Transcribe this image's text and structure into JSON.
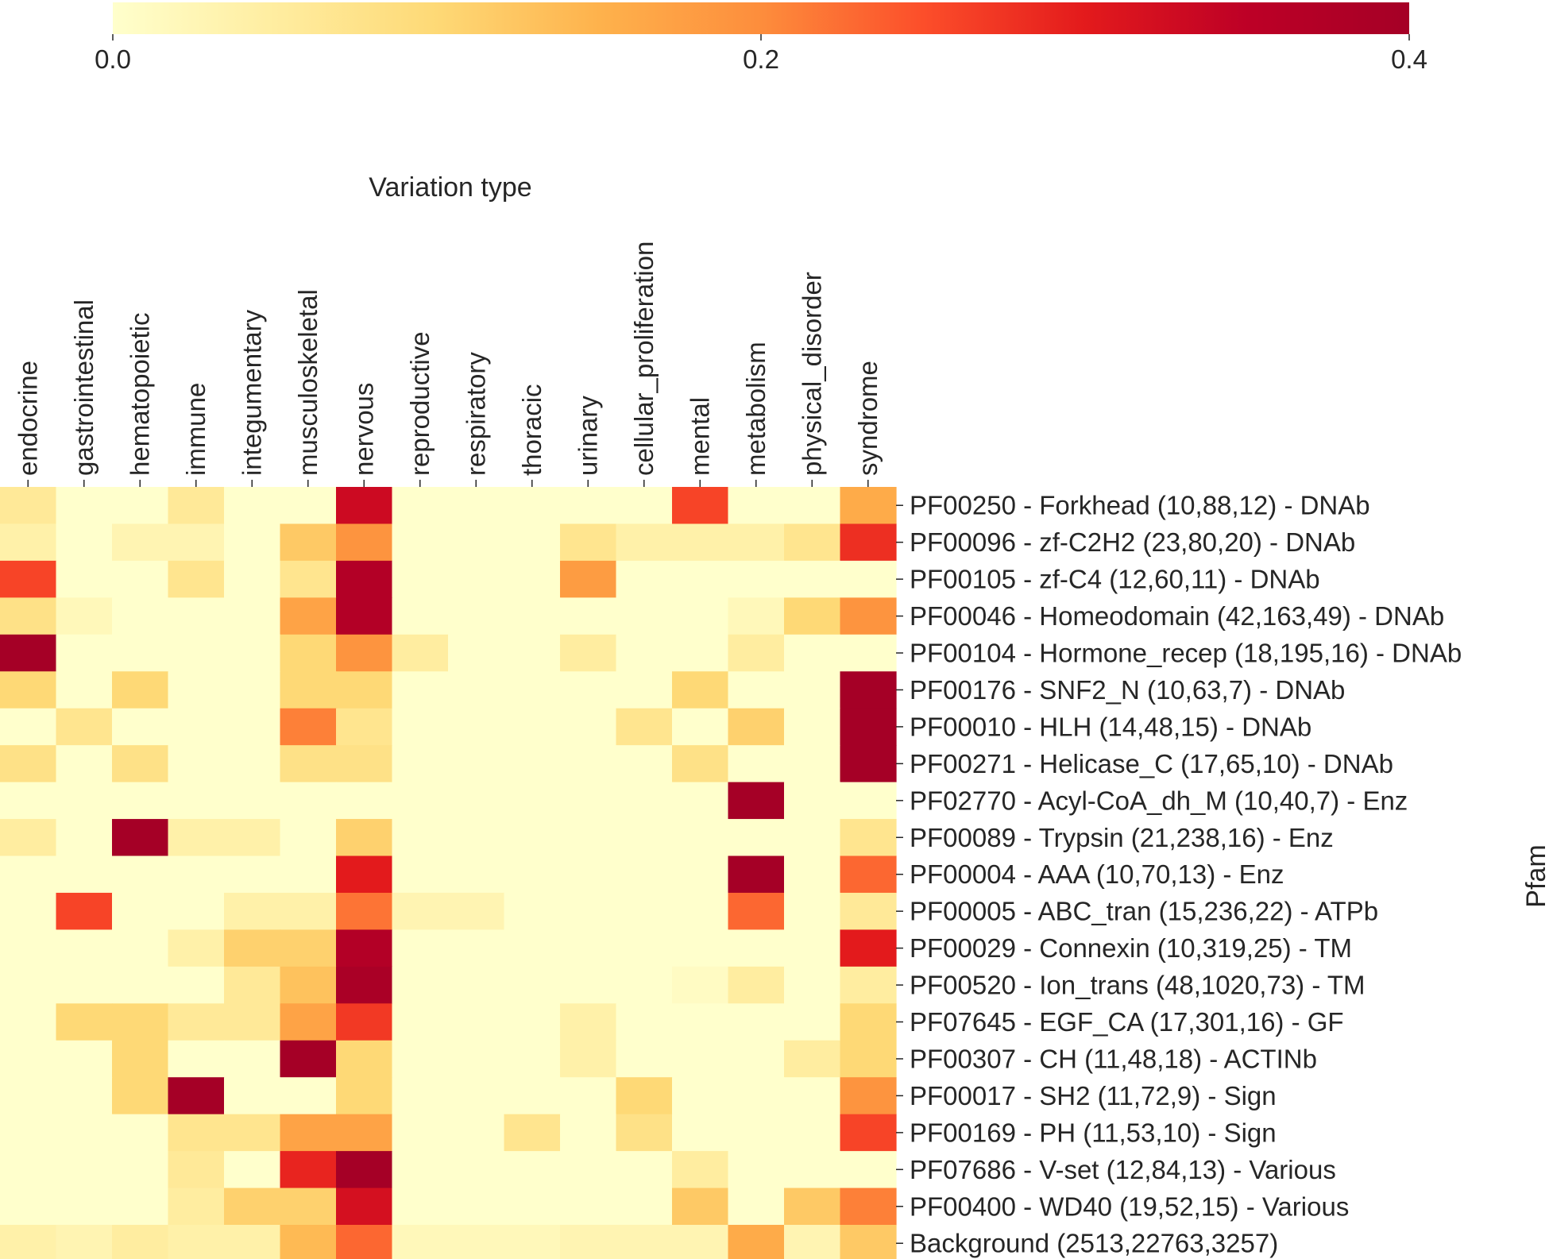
{
  "chart_data": {
    "type": "heatmap",
    "title": "",
    "xlabel": "Variation type",
    "ylabel": "Pfam",
    "colormap": "YlOrRd",
    "colors": [
      "#ffffcc",
      "#ffeda0",
      "#fed976",
      "#feb24c",
      "#fd8d3c",
      "#fc4e2a",
      "#e31a1c",
      "#bd0026",
      "#a50026"
    ],
    "vmin": 0.0,
    "vmax": 0.4,
    "colorbar": {
      "position": "top",
      "ticks": [
        "0.0",
        "0.2",
        "0.4"
      ],
      "tick_values": [
        0.0,
        0.2,
        0.4
      ]
    },
    "columns": [
      "endocrine",
      "gastrointestinal",
      "hematopoietic",
      "immune",
      "integumentary",
      "musculoskeletal",
      "nervous",
      "reproductive",
      "respiratory",
      "thoracic",
      "urinary",
      "cellular_proliferation",
      "mental",
      "metabolism",
      "physical_disorder",
      "syndrome"
    ],
    "rows": [
      "PF00250 - Forkhead (10,88,12) - DNAb",
      "PF00096 - zf-C2H2 (23,80,20) - DNAb",
      "PF00105 - zf-C4 (12,60,11) - DNAb",
      "PF00046 - Homeodomain (42,163,49) - DNAb",
      "PF00104 - Hormone_recep (18,195,16) - DNAb",
      "PF00176 - SNF2_N (10,63,7) - DNAb",
      "PF00010 - HLH (14,48,15) - DNAb",
      "PF00271 - Helicase_C (17,65,10) - DNAb",
      "PF02770 - Acyl-CoA_dh_M (10,40,7) - Enz",
      "PF00089 - Trypsin (21,238,16) - Enz",
      "PF00004 - AAA (10,70,13) - Enz",
      "PF00005 - ABC_tran (15,236,22) - ATPb",
      "PF00029 - Connexin (10,319,25) - TM",
      "PF00520 - Ion_trans (48,1020,73) - TM",
      "PF07645 - EGF_CA (17,301,16) - GF",
      "PF00307 - CH (11,48,18) - ACTINb",
      "PF00017 - SH2 (11,72,9) - Sign",
      "PF00169 - PH (11,53,10) - Sign",
      "PF07686 - V-set (12,84,13) - Various",
      "PF00400 - WD40 (19,52,15) - Various",
      "Background (2513,22763,3257)"
    ],
    "values": [
      [
        0.06,
        0.0,
        0.0,
        0.06,
        0.0,
        0.0,
        0.33,
        0.0,
        0.0,
        0.0,
        0.0,
        0.0,
        0.26,
        0.0,
        0.0,
        0.16
      ],
      [
        0.04,
        0.0,
        0.03,
        0.03,
        0.0,
        0.12,
        0.19,
        0.0,
        0.0,
        0.0,
        0.07,
        0.04,
        0.04,
        0.04,
        0.07,
        0.28
      ],
      [
        0.26,
        0.0,
        0.0,
        0.07,
        0.0,
        0.07,
        0.37,
        0.0,
        0.0,
        0.0,
        0.18,
        0.0,
        0.0,
        0.0,
        0.0,
        0.0
      ],
      [
        0.08,
        0.02,
        0.0,
        0.0,
        0.0,
        0.17,
        0.37,
        0.0,
        0.0,
        0.0,
        0.0,
        0.0,
        0.0,
        0.02,
        0.1,
        0.19
      ],
      [
        0.4,
        0.0,
        0.0,
        0.0,
        0.0,
        0.1,
        0.19,
        0.05,
        0.0,
        0.0,
        0.05,
        0.0,
        0.0,
        0.05,
        0.0,
        0.0
      ],
      [
        0.1,
        0.0,
        0.1,
        0.0,
        0.0,
        0.1,
        0.1,
        0.0,
        0.0,
        0.0,
        0.0,
        0.0,
        0.1,
        0.0,
        0.0,
        0.4
      ],
      [
        0.0,
        0.07,
        0.0,
        0.0,
        0.0,
        0.21,
        0.07,
        0.0,
        0.0,
        0.0,
        0.0,
        0.07,
        0.0,
        0.11,
        0.0,
        0.4
      ],
      [
        0.08,
        0.0,
        0.08,
        0.0,
        0.0,
        0.08,
        0.08,
        0.0,
        0.0,
        0.0,
        0.0,
        0.0,
        0.08,
        0.0,
        0.0,
        0.4
      ],
      [
        0.0,
        0.0,
        0.0,
        0.0,
        0.0,
        0.0,
        0.0,
        0.0,
        0.0,
        0.0,
        0.0,
        0.0,
        0.0,
        0.4,
        0.0,
        0.0
      ],
      [
        0.05,
        0.0,
        0.4,
        0.04,
        0.04,
        0.0,
        0.11,
        0.0,
        0.0,
        0.0,
        0.0,
        0.0,
        0.0,
        0.0,
        0.0,
        0.07
      ],
      [
        0.0,
        0.0,
        0.0,
        0.0,
        0.0,
        0.0,
        0.3,
        0.0,
        0.0,
        0.0,
        0.0,
        0.0,
        0.0,
        0.4,
        0.0,
        0.23
      ],
      [
        0.0,
        0.26,
        0.0,
        0.0,
        0.04,
        0.04,
        0.22,
        0.03,
        0.03,
        0.0,
        0.0,
        0.0,
        0.0,
        0.23,
        0.0,
        0.06
      ],
      [
        0.0,
        0.0,
        0.0,
        0.04,
        0.11,
        0.11,
        0.37,
        0.0,
        0.0,
        0.0,
        0.0,
        0.0,
        0.0,
        0.0,
        0.0,
        0.3
      ],
      [
        0.0,
        0.0,
        0.0,
        0.0,
        0.06,
        0.13,
        0.39,
        0.0,
        0.0,
        0.0,
        0.0,
        0.0,
        0.01,
        0.05,
        0.0,
        0.05
      ],
      [
        0.0,
        0.1,
        0.1,
        0.06,
        0.06,
        0.17,
        0.27,
        0.0,
        0.0,
        0.0,
        0.04,
        0.0,
        0.0,
        0.0,
        0.0,
        0.1
      ],
      [
        0.0,
        0.0,
        0.1,
        0.0,
        0.0,
        0.4,
        0.1,
        0.0,
        0.0,
        0.0,
        0.04,
        0.0,
        0.0,
        0.0,
        0.05,
        0.1
      ],
      [
        0.0,
        0.0,
        0.1,
        0.4,
        0.0,
        0.0,
        0.1,
        0.0,
        0.0,
        0.0,
        0.0,
        0.1,
        0.0,
        0.0,
        0.0,
        0.19
      ],
      [
        0.0,
        0.0,
        0.0,
        0.07,
        0.07,
        0.17,
        0.17,
        0.0,
        0.0,
        0.07,
        0.0,
        0.08,
        0.0,
        0.0,
        0.0,
        0.26
      ],
      [
        0.0,
        0.0,
        0.0,
        0.06,
        0.0,
        0.29,
        0.4,
        0.0,
        0.0,
        0.0,
        0.0,
        0.0,
        0.05,
        0.0,
        0.0,
        0.0
      ],
      [
        0.0,
        0.0,
        0.0,
        0.05,
        0.11,
        0.11,
        0.32,
        0.0,
        0.0,
        0.0,
        0.0,
        0.0,
        0.12,
        0.0,
        0.12,
        0.21
      ],
      [
        0.04,
        0.03,
        0.05,
        0.04,
        0.04,
        0.14,
        0.23,
        0.02,
        0.02,
        0.02,
        0.03,
        0.03,
        0.03,
        0.16,
        0.03,
        0.12
      ]
    ]
  }
}
